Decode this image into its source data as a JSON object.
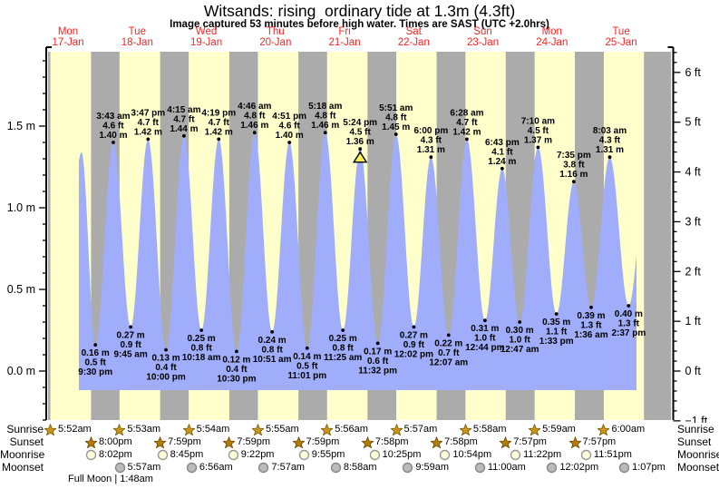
{
  "title": "Witsands: rising  ordinary tide at 1.3m (4.3ft)",
  "subtitle": "Image captured 53 minutes before high water. Times are SAST (UTC +2.0hrs)",
  "legend_labels": {
    "sunrise": "Sunrise",
    "sunset": "Sunset",
    "moonrise": "Moonrise",
    "moonset": "Moonset"
  },
  "chart_data": {
    "type": "area",
    "title": "Witsands: rising  ordinary tide at 1.3m (4.3ft)",
    "ylabel_left_unit": "m",
    "ylabel_right_unit": "ft",
    "y_axis_left_labels": [
      "1.5 m",
      "1.0 m",
      "0.5 m",
      "0.0 m"
    ],
    "y_axis_left_values": [
      1.5,
      1.0,
      0.5,
      0.0
    ],
    "y_axis_right_labels": [
      "6 ft",
      "5 ft",
      "4 ft",
      "3 ft",
      "2 ft",
      "1 ft",
      "0 ft",
      "−1 ft"
    ],
    "y_axis_right_values": [
      6,
      5,
      4,
      3,
      2,
      1,
      0,
      -1
    ],
    "days": [
      {
        "name": "Mon",
        "date": "17-Jan"
      },
      {
        "name": "Tue",
        "date": "18-Jan"
      },
      {
        "name": "Wed",
        "date": "19-Jan"
      },
      {
        "name": "Thu",
        "date": "20-Jan"
      },
      {
        "name": "Fri",
        "date": "21-Jan"
      },
      {
        "name": "Sat",
        "date": "22-Jan"
      },
      {
        "name": "Sun",
        "date": "23-Jan"
      },
      {
        "name": "Mon",
        "date": "24-Jan"
      },
      {
        "name": "Tue",
        "date": "25-Jan"
      }
    ],
    "events": [
      {
        "type": "high",
        "day": 0,
        "time": "16:40",
        "height_m": 1.34,
        "label_lines": []
      },
      {
        "type": "low",
        "day": 0,
        "time": "21:30",
        "height_m": 0.16,
        "label_lines": [
          "0.16 m",
          "0.5 ft",
          "9:30 pm"
        ]
      },
      {
        "type": "high",
        "day": 1,
        "time": "03:43",
        "height_m": 1.4,
        "label_lines": [
          "3:43 am",
          "4.6 ft",
          "1.40 m"
        ]
      },
      {
        "type": "low",
        "day": 1,
        "time": "09:45",
        "height_m": 0.27,
        "label_lines": [
          "0.27 m",
          "0.9 ft",
          "9:45 am"
        ]
      },
      {
        "type": "high",
        "day": 1,
        "time": "15:47",
        "height_m": 1.42,
        "label_lines": [
          "3:47 pm",
          "4.7 ft",
          "1.42 m"
        ]
      },
      {
        "type": "low",
        "day": 1,
        "time": "22:00",
        "height_m": 0.13,
        "label_lines": [
          "0.13 m",
          "0.4 ft",
          "10:00 pm"
        ]
      },
      {
        "type": "high",
        "day": 2,
        "time": "04:15",
        "height_m": 1.44,
        "label_lines": [
          "4:15 am",
          "4.7 ft",
          "1.44 m"
        ]
      },
      {
        "type": "low",
        "day": 2,
        "time": "10:18",
        "height_m": 0.25,
        "label_lines": [
          "0.25 m",
          "0.8 ft",
          "10:18 am"
        ]
      },
      {
        "type": "high",
        "day": 2,
        "time": "16:19",
        "height_m": 1.42,
        "label_lines": [
          "4:19 pm",
          "4.7 ft",
          "1.42 m"
        ]
      },
      {
        "type": "low",
        "day": 2,
        "time": "22:30",
        "height_m": 0.12,
        "label_lines": [
          "0.12 m",
          "0.4 ft",
          "10:30 pm"
        ]
      },
      {
        "type": "high",
        "day": 3,
        "time": "04:46",
        "height_m": 1.46,
        "label_lines": [
          "4:46 am",
          "4.8 ft",
          "1.46 m"
        ]
      },
      {
        "type": "low",
        "day": 3,
        "time": "10:51",
        "height_m": 0.24,
        "label_lines": [
          "0.24 m",
          "0.8 ft",
          "10:51 am"
        ]
      },
      {
        "type": "high",
        "day": 3,
        "time": "16:51",
        "height_m": 1.4,
        "label_lines": [
          "4:51 pm",
          "4.6 ft",
          "1.40 m"
        ]
      },
      {
        "type": "low",
        "day": 3,
        "time": "23:01",
        "height_m": 0.14,
        "label_lines": [
          "0.14 m",
          "0.5 ft",
          "11:01 pm"
        ]
      },
      {
        "type": "high",
        "day": 4,
        "time": "05:18",
        "height_m": 1.46,
        "label_lines": [
          "5:18 am",
          "4.8 ft",
          "1.46 m"
        ]
      },
      {
        "type": "low",
        "day": 4,
        "time": "11:25",
        "height_m": 0.25,
        "label_lines": [
          "0.25 m",
          "0.8 ft",
          "11:25 am"
        ]
      },
      {
        "type": "high",
        "day": 4,
        "time": "17:24",
        "height_m": 1.36,
        "label_lines": [
          "5:24 pm",
          "4.5 ft",
          "1.36 m"
        ],
        "current": true
      },
      {
        "type": "low",
        "day": 4,
        "time": "23:32",
        "height_m": 0.17,
        "label_lines": [
          "0.17 m",
          "0.6 ft",
          "11:32 pm"
        ]
      },
      {
        "type": "high",
        "day": 5,
        "time": "05:51",
        "height_m": 1.45,
        "label_lines": [
          "5:51 am",
          "4.8 ft",
          "1.45 m"
        ]
      },
      {
        "type": "low",
        "day": 5,
        "time": "12:02",
        "height_m": 0.27,
        "label_lines": [
          "0.27 m",
          "0.9 ft",
          "12:02 pm"
        ]
      },
      {
        "type": "high",
        "day": 5,
        "time": "18:00",
        "height_m": 1.31,
        "label_lines": [
          "6:00 pm",
          "4.3 ft",
          "1.31 m"
        ]
      },
      {
        "type": "low",
        "day": 6,
        "time": "00:07",
        "height_m": 0.22,
        "label_lines": [
          "0.22 m",
          "0.7 ft",
          "12:07 am"
        ]
      },
      {
        "type": "high",
        "day": 6,
        "time": "06:28",
        "height_m": 1.42,
        "label_lines": [
          "6:28 am",
          "4.7 ft",
          "1.42 m"
        ]
      },
      {
        "type": "low",
        "day": 6,
        "time": "12:44",
        "height_m": 0.31,
        "label_lines": [
          "0.31 m",
          "1.0 ft",
          "12:44 pm"
        ]
      },
      {
        "type": "high",
        "day": 6,
        "time": "18:43",
        "height_m": 1.24,
        "label_lines": [
          "6:43 pm",
          "4.1 ft",
          "1.24 m"
        ]
      },
      {
        "type": "low",
        "day": 7,
        "time": "00:47",
        "height_m": 0.3,
        "label_lines": [
          "0.30 m",
          "1.0 ft",
          "12:47 am"
        ]
      },
      {
        "type": "high",
        "day": 7,
        "time": "07:10",
        "height_m": 1.37,
        "label_lines": [
          "7:10 am",
          "4.5 ft",
          "1.37 m"
        ]
      },
      {
        "type": "low",
        "day": 7,
        "time": "13:33",
        "height_m": 0.35,
        "label_lines": [
          "0.35 m",
          "1.1 ft",
          "1:33 pm"
        ]
      },
      {
        "type": "high",
        "day": 7,
        "time": "19:35",
        "height_m": 1.16,
        "label_lines": [
          "7:35 pm",
          "3.8 ft",
          "1.16 m"
        ]
      },
      {
        "type": "low",
        "day": 8,
        "time": "01:36",
        "height_m": 0.39,
        "label_lines": [
          "0.39 m",
          "1.3 ft",
          "1:36 am"
        ]
      },
      {
        "type": "high",
        "day": 8,
        "time": "08:03",
        "height_m": 1.31,
        "label_lines": [
          "8:03 am",
          "4.3 ft",
          "1.31 m"
        ]
      },
      {
        "type": "low",
        "day": 8,
        "time": "14:37",
        "height_m": 0.4,
        "label_lines": [
          "0.40 m",
          "1.3 ft",
          "2:37 pm"
        ]
      }
    ],
    "sun_moon": {
      "sunrise": [
        {
          "day": 0,
          "time": "05:52",
          "label": "5:52am"
        },
        {
          "day": 1,
          "time": "05:53",
          "label": "5:53am"
        },
        {
          "day": 2,
          "time": "05:54",
          "label": "5:54am"
        },
        {
          "day": 3,
          "time": "05:55",
          "label": "5:55am"
        },
        {
          "day": 4,
          "time": "05:56",
          "label": "5:56am"
        },
        {
          "day": 5,
          "time": "05:57",
          "label": "5:57am"
        },
        {
          "day": 6,
          "time": "05:58",
          "label": "5:58am"
        },
        {
          "day": 7,
          "time": "05:59",
          "label": "5:59am"
        },
        {
          "day": 8,
          "time": "06:00",
          "label": "6:00am"
        }
      ],
      "sunset": [
        {
          "day": 0,
          "time": "20:00",
          "label": "8:00pm"
        },
        {
          "day": 1,
          "time": "19:59",
          "label": "7:59pm"
        },
        {
          "day": 2,
          "time": "19:59",
          "label": "7:59pm"
        },
        {
          "day": 3,
          "time": "19:59",
          "label": "7:59pm"
        },
        {
          "day": 4,
          "time": "19:58",
          "label": "7:58pm"
        },
        {
          "day": 5,
          "time": "19:58",
          "label": "7:58pm"
        },
        {
          "day": 6,
          "time": "19:57",
          "label": "7:57pm"
        },
        {
          "day": 7,
          "time": "19:57",
          "label": "7:57pm"
        }
      ],
      "moonrise": [
        {
          "day": 0,
          "time": "20:02",
          "label": "8:02pm"
        },
        {
          "day": 1,
          "time": "20:45",
          "label": "8:45pm"
        },
        {
          "day": 2,
          "time": "21:22",
          "label": "9:22pm"
        },
        {
          "day": 3,
          "time": "21:55",
          "label": "9:55pm"
        },
        {
          "day": 4,
          "time": "22:25",
          "label": "10:25pm"
        },
        {
          "day": 5,
          "time": "22:54",
          "label": "10:54pm"
        },
        {
          "day": 6,
          "time": "23:22",
          "label": "11:22pm"
        },
        {
          "day": 7,
          "time": "23:51",
          "label": "11:51pm"
        }
      ],
      "moonset": [
        {
          "day": 1,
          "time": "05:57",
          "label": "5:57am"
        },
        {
          "day": 2,
          "time": "06:56",
          "label": "6:56am"
        },
        {
          "day": 3,
          "time": "07:57",
          "label": "7:57am"
        },
        {
          "day": 4,
          "time": "08:58",
          "label": "8:58am"
        },
        {
          "day": 5,
          "time": "09:59",
          "label": "9:59am"
        },
        {
          "day": 6,
          "time": "11:00",
          "label": "11:00am"
        },
        {
          "day": 7,
          "time": "12:02",
          "label": "12:02pm"
        },
        {
          "day": 8,
          "time": "13:07",
          "label": "1:07pm"
        }
      ]
    },
    "full_moon": "Full Moon | 1:48am",
    "colors": {
      "daylight_band": "#ffffcc",
      "night_band": "#ababab",
      "tide_fill": "#9fadfb",
      "day_label_red": "#ff2222",
      "axis": "#000000",
      "current_marker_fill": "#ffee55",
      "star_sunrise": "#c9961c",
      "star_sunset": "#b17c08",
      "moonrise_fill": "#ffffd9",
      "moonrise_stroke": "#999999",
      "moonset_fill": "#bbbbbb",
      "moonset_stroke": "#888888"
    }
  }
}
